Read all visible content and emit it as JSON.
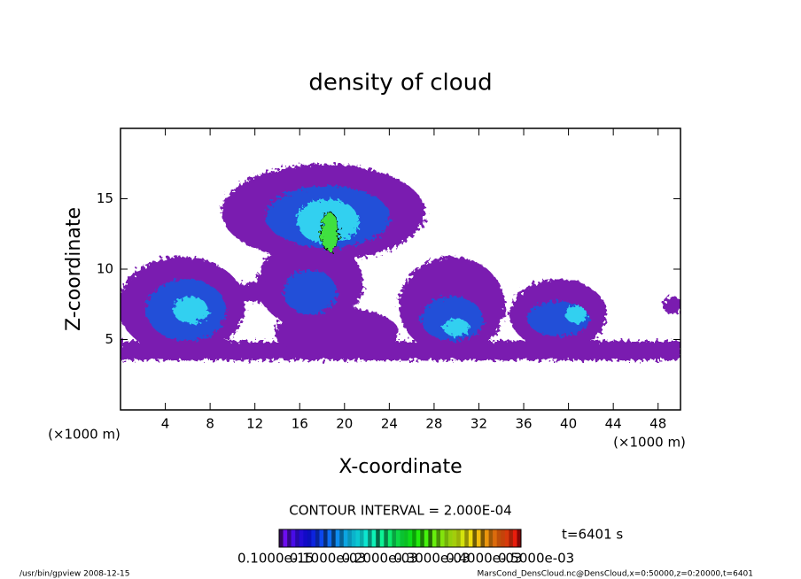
{
  "chart_data": {
    "type": "contour",
    "title": "density of cloud",
    "xlabel": "X-coordinate",
    "ylabel": "Z-coordinate",
    "xunit": "(×1000 m)",
    "yunit": "(×1000 m)",
    "xlim": [
      0,
      50
    ],
    "xticks": [
      4,
      8,
      12,
      16,
      20,
      24,
      28,
      32,
      36,
      40,
      44,
      48
    ],
    "ylim": [
      0,
      20
    ],
    "yticks": [
      5,
      10,
      15
    ],
    "contour_interval": "CONTOUR INTERVAL = 2.000E-04",
    "time": "t=6401 s",
    "colorbar_labels": [
      "0.1000e-15",
      "0.1000e-03",
      "0.2000e-03",
      "0.3000e-03",
      "0.4000e-03",
      "0.5000e-03"
    ],
    "footer_left": "/usr/bin/gpview   2008-12-15",
    "footer_right": "MarsCond_DensCloud.nc@DensCloud,x=0:50000,z=0:20000,t=6401"
  }
}
